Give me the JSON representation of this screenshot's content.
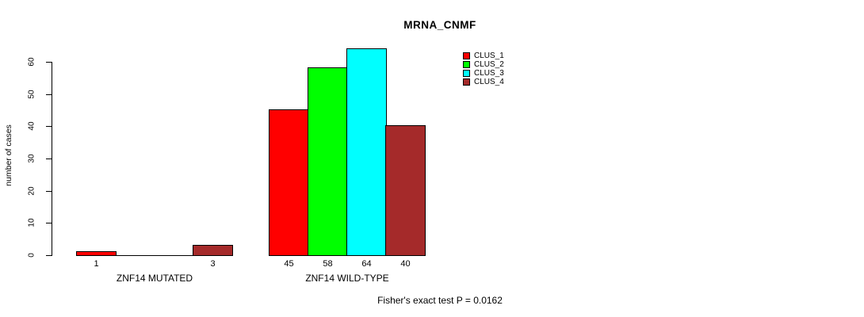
{
  "chart_data": {
    "type": "bar",
    "title": "MRNA_CNMF",
    "ylabel": "number of cases",
    "xlabel": "",
    "ylim": [
      0,
      60
    ],
    "yticks": [
      0,
      10,
      20,
      30,
      40,
      50,
      60
    ],
    "grid": false,
    "categories": [
      "ZNF14 MUTATED",
      "ZNF14 WILD-TYPE"
    ],
    "series": [
      {
        "name": "CLUS_1",
        "color": "#FF0000",
        "values": [
          1,
          45
        ]
      },
      {
        "name": "CLUS_2",
        "color": "#00FF00",
        "values": [
          0,
          58
        ]
      },
      {
        "name": "CLUS_3",
        "color": "#00FFFF",
        "values": [
          0,
          64
        ]
      },
      {
        "name": "CLUS_4",
        "color": "#A52A2A",
        "values": [
          3,
          40
        ]
      }
    ],
    "bar_value_labels": {
      "shown": true,
      "hide_zero": true
    },
    "legend_position": "top-right",
    "annotation": "Fisher's exact test P = 0.0162"
  }
}
